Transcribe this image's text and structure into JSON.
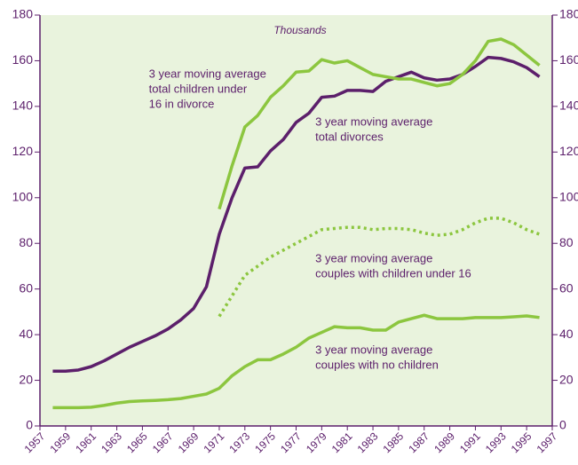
{
  "chart_data": {
    "type": "line",
    "unit_label": "Thousands",
    "x": [
      1958,
      1959,
      1960,
      1961,
      1962,
      1963,
      1964,
      1965,
      1966,
      1967,
      1968,
      1969,
      1970,
      1971,
      1972,
      1973,
      1974,
      1975,
      1976,
      1977,
      1978,
      1979,
      1980,
      1981,
      1982,
      1983,
      1984,
      1985,
      1986,
      1987,
      1988,
      1989,
      1990,
      1991,
      1992,
      1993,
      1994,
      1995,
      1996
    ],
    "xlim": [
      1957,
      1997
    ],
    "xticks": [
      1957,
      1959,
      1961,
      1963,
      1965,
      1967,
      1969,
      1971,
      1973,
      1975,
      1977,
      1979,
      1981,
      1983,
      1985,
      1987,
      1989,
      1991,
      1993,
      1995,
      1997
    ],
    "ylim": [
      0,
      180
    ],
    "yticks": [
      0,
      20,
      40,
      60,
      80,
      100,
      120,
      140,
      160,
      180
    ],
    "y2lim": [
      0,
      180
    ],
    "y2ticks": [
      0,
      20,
      40,
      60,
      80,
      100,
      120,
      140,
      160,
      180
    ],
    "series": [
      {
        "name": "3 year moving average total divorces",
        "color": "#5c1f6b",
        "dashed": false,
        "values": [
          24,
          24,
          24.5,
          26,
          28.5,
          31.5,
          34.5,
          37,
          39.5,
          42.5,
          46.5,
          51.5,
          61,
          84,
          100,
          113,
          113.5,
          120.5,
          125.5,
          133,
          137,
          144,
          144.5,
          147,
          147,
          146.5,
          151,
          153,
          155,
          152.5,
          151.5,
          152,
          154,
          157.5,
          161.5,
          161,
          159.5,
          157,
          153
        ]
      },
      {
        "name": "3 year moving average total children under 16 in divorce",
        "color": "#8cc63f",
        "dashed": false,
        "values": [
          null,
          null,
          null,
          null,
          null,
          null,
          null,
          null,
          null,
          null,
          null,
          null,
          null,
          95,
          114,
          131,
          136,
          144,
          149,
          155,
          155.5,
          160.5,
          159,
          160,
          157,
          154,
          153,
          152,
          152,
          150.5,
          149,
          150,
          154,
          160,
          168.5,
          169.5,
          167,
          162.5,
          158
        ]
      },
      {
        "name": "3 year moving average couples with children under 16",
        "color": "#8cc63f",
        "dashed": true,
        "values": [
          null,
          null,
          null,
          null,
          null,
          null,
          null,
          null,
          null,
          null,
          null,
          null,
          null,
          48,
          57,
          66,
          70,
          74,
          77,
          80,
          83,
          86,
          86.5,
          87,
          87,
          86,
          86.5,
          86.5,
          86,
          84.5,
          83.5,
          84,
          86,
          89,
          91,
          91,
          89,
          86,
          84
        ]
      },
      {
        "name": "3 year moving average couples with no children",
        "color": "#8cc63f",
        "dashed": false,
        "values": [
          8,
          8,
          8,
          8.2,
          9,
          10,
          10.7,
          11,
          11.2,
          11.5,
          12,
          13,
          14,
          16.5,
          22,
          26,
          29,
          29,
          31.5,
          34.5,
          38.5,
          41,
          43.5,
          43,
          43,
          42,
          42,
          45.5,
          47,
          48.5,
          47,
          47,
          47,
          47.5,
          47.5,
          47.5,
          47.8,
          48.2,
          47.5
        ]
      }
    ],
    "annotations": [
      {
        "lines": [
          "3 year moving average",
          "total children under",
          "16 in divorce"
        ],
        "x": 1965.5,
        "y": 154
      },
      {
        "lines": [
          "3 year moving average",
          "total divorces"
        ],
        "x": 1978.5,
        "y": 133
      },
      {
        "lines": [
          "3 year moving average",
          "couples with children under 16"
        ],
        "x": 1978.5,
        "y": 73
      },
      {
        "lines": [
          "3 year moving average",
          "couples with no children"
        ],
        "x": 1978.5,
        "y": 33
      }
    ]
  }
}
